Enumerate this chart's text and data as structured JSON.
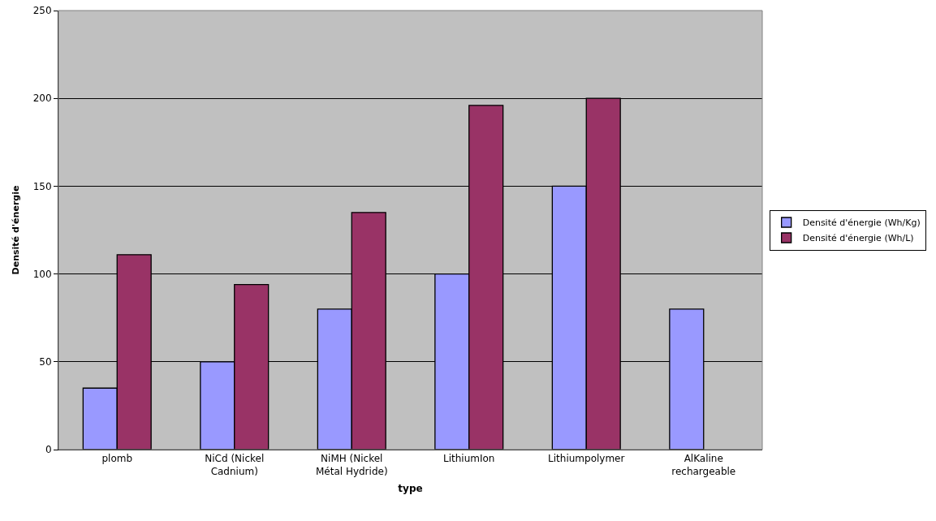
{
  "chart_data": {
    "type": "bar",
    "xlabel": "type",
    "ylabel": "Densité d'énergie",
    "categories": [
      "plomb",
      "NiCd (Nickel Cadnium)",
      "NiMH (Nickel Métal Hydride)",
      "LithiumIon",
      "Lithiumpolymer",
      "AlKaline rechargeable"
    ],
    "series": [
      {
        "name": "Densité d'énergie (Wh/Kg)",
        "color": "#9999ff",
        "values": [
          35,
          50,
          80,
          100,
          150,
          80
        ]
      },
      {
        "name": "Densité d'énergie (Wh/L)",
        "color": "#993366",
        "values": [
          111,
          94,
          135,
          196,
          200,
          null
        ]
      }
    ],
    "ylim": [
      0,
      250
    ],
    "yticks": [
      0,
      50,
      100,
      150,
      200,
      250
    ],
    "grid": "y",
    "legend": "right"
  }
}
